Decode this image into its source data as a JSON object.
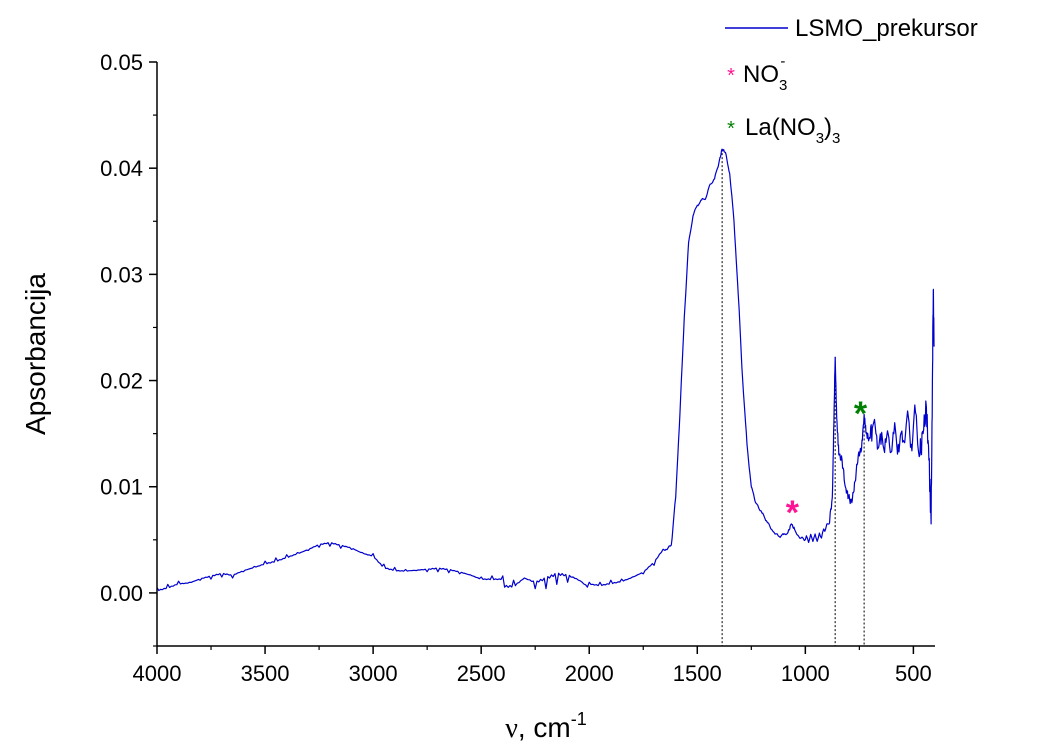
{
  "chart_data": {
    "type": "line",
    "xlabel": "ν, cm⁻¹",
    "xlabel_parts": {
      "symbol": "ν",
      "unit": ", cm",
      "sup": "-1"
    },
    "ylabel": "Apsorbancija",
    "xlim": [
      4000,
      400
    ],
    "ylim": [
      -0.005,
      0.05
    ],
    "x_reversed": true,
    "x_ticks": [
      4000,
      3500,
      3000,
      2500,
      2000,
      1500,
      1000,
      500
    ],
    "x_tick_labels": [
      "4000",
      "3500",
      "3000",
      "2500",
      "2000",
      "1500",
      "1000",
      "500"
    ],
    "y_ticks": [
      0.0,
      0.01,
      0.02,
      0.03,
      0.04,
      0.05
    ],
    "y_tick_labels": [
      "0.00",
      "0.01",
      "0.02",
      "0.03",
      "0.04",
      "0.05"
    ],
    "grid": false,
    "legend_position": "top-right",
    "series": [
      {
        "name": "LSMO_prekursor",
        "color": "#0000cc",
        "points": [
          [
            4000,
            0.0005
          ],
          [
            3950,
            0.0008
          ],
          [
            3900,
            0.0011
          ],
          [
            3850,
            0.001
          ],
          [
            3800,
            0.0012
          ],
          [
            3750,
            0.0013
          ],
          [
            3700,
            0.0015
          ],
          [
            3650,
            0.0014
          ],
          [
            3600,
            0.002
          ],
          [
            3550,
            0.0025
          ],
          [
            3500,
            0.003
          ],
          [
            3450,
            0.0033
          ],
          [
            3400,
            0.0036
          ],
          [
            3350,
            0.0038
          ],
          [
            3300,
            0.004
          ],
          [
            3250,
            0.0043
          ],
          [
            3200,
            0.0044
          ],
          [
            3150,
            0.0042
          ],
          [
            3100,
            0.0041
          ],
          [
            3050,
            0.0038
          ],
          [
            3000,
            0.0037
          ],
          [
            2950,
            0.0027
          ],
          [
            2900,
            0.0024
          ],
          [
            2850,
            0.0022
          ],
          [
            2800,
            0.0021
          ],
          [
            2750,
            0.002
          ],
          [
            2700,
            0.002
          ],
          [
            2650,
            0.0019
          ],
          [
            2600,
            0.0018
          ],
          [
            2550,
            0.0017
          ],
          [
            2500,
            0.0015
          ],
          [
            2450,
            0.0016
          ],
          [
            2400,
            0.0016
          ],
          [
            2350,
            0.0012
          ],
          [
            2300,
            0.0014
          ],
          [
            2250,
            0.0004
          ],
          [
            2200,
            0.0004
          ],
          [
            2150,
            0.0008
          ],
          [
            2100,
            0.001
          ],
          [
            2050,
            0.0012
          ],
          [
            2000,
            0.001
          ],
          [
            1950,
            0.001
          ],
          [
            1900,
            0.0012
          ],
          [
            1850,
            0.0013
          ],
          [
            1800,
            0.0015
          ],
          [
            1750,
            0.0018
          ],
          [
            1700,
            0.0026
          ],
          [
            1650,
            0.004
          ],
          [
            1620,
            0.0045
          ],
          [
            1600,
            0.009
          ],
          [
            1580,
            0.017
          ],
          [
            1560,
            0.026
          ],
          [
            1540,
            0.033
          ],
          [
            1520,
            0.0355
          ],
          [
            1500,
            0.0365
          ],
          [
            1480,
            0.037
          ],
          [
            1460,
            0.0372
          ],
          [
            1440,
            0.0385
          ],
          [
            1420,
            0.039
          ],
          [
            1400,
            0.0405
          ],
          [
            1385,
            0.0418
          ],
          [
            1370,
            0.0415
          ],
          [
            1350,
            0.0395
          ],
          [
            1330,
            0.035
          ],
          [
            1310,
            0.028
          ],
          [
            1290,
            0.02
          ],
          [
            1270,
            0.014
          ],
          [
            1250,
            0.01
          ],
          [
            1230,
            0.0085
          ],
          [
            1200,
            0.0075
          ],
          [
            1180,
            0.0068
          ],
          [
            1150,
            0.0058
          ],
          [
            1120,
            0.0053
          ],
          [
            1100,
            0.0055
          ],
          [
            1080,
            0.0057
          ],
          [
            1065,
            0.0065
          ],
          [
            1050,
            0.006
          ],
          [
            1030,
            0.0053
          ],
          [
            1000,
            0.005
          ],
          [
            970,
            0.0052
          ],
          [
            940,
            0.0052
          ],
          [
            910,
            0.0058
          ],
          [
            890,
            0.0065
          ],
          [
            875,
            0.009
          ],
          [
            868,
            0.016
          ],
          [
            862,
            0.0222
          ],
          [
            855,
            0.0165
          ],
          [
            845,
            0.013
          ],
          [
            830,
            0.0125
          ],
          [
            815,
            0.01
          ],
          [
            800,
            0.009
          ],
          [
            785,
            0.0085
          ],
          [
            770,
            0.0105
          ],
          [
            755,
            0.013
          ],
          [
            740,
            0.0135
          ],
          [
            728,
            0.0168
          ],
          [
            718,
            0.015
          ],
          [
            705,
            0.0145
          ],
          [
            690,
            0.0155
          ],
          [
            670,
            0.0148
          ],
          [
            650,
            0.014
          ],
          [
            630,
            0.0145
          ],
          [
            610,
            0.0138
          ],
          [
            590,
            0.015
          ],
          [
            570,
            0.014
          ],
          [
            550,
            0.0142
          ],
          [
            530,
            0.0165
          ],
          [
            510,
            0.014
          ],
          [
            490,
            0.017
          ],
          [
            470,
            0.013
          ],
          [
            455,
            0.015
          ],
          [
            440,
            0.0175
          ],
          [
            428,
            0.0125
          ],
          [
            418,
            0.0065
          ],
          [
            412,
            0.02
          ],
          [
            408,
            0.0285
          ],
          [
            404,
            0.0232
          ]
        ]
      }
    ],
    "legend_entries": [
      {
        "label": "LSMO_prekursor",
        "marker": "line",
        "color": "#0000cc"
      },
      {
        "label": "NO",
        "sub": "3",
        "sup": "-",
        "marker": "*",
        "color": "#ff1493"
      },
      {
        "label": "La(NO",
        "sub": "3",
        "tail": ")",
        "sub2": "3",
        "marker": "*",
        "color": "#008000"
      }
    ],
    "annotations": [
      {
        "text": "*",
        "x": 1060,
        "y": 0.0082,
        "color": "#ff1493"
      },
      {
        "text": "*",
        "x": 745,
        "y": 0.0175,
        "color": "#008000"
      }
    ],
    "reference_lines": [
      {
        "x": 1385,
        "y_top": 0.0418,
        "style": "dotted"
      },
      {
        "x": 862,
        "y_top": 0.0222,
        "style": "dotted"
      },
      {
        "x": 728,
        "y_top": 0.0168,
        "style": "dotted"
      }
    ]
  }
}
